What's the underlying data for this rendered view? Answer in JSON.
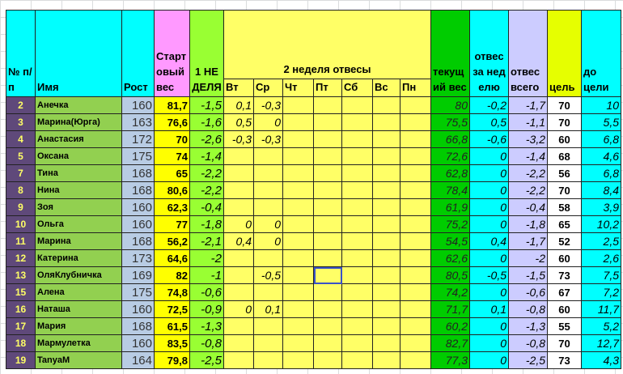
{
  "headers": {
    "num": "№ п/п",
    "name": "Имя",
    "rost": "Рост",
    "start": "Стартовый вес",
    "week1": "1 НЕДЕЛЯ",
    "week2": "2 неделя отвесы",
    "days": [
      "Вт",
      "Ср",
      "Чт",
      "Пт",
      "Сб",
      "Вс",
      "Пн"
    ],
    "current": "текущий вес",
    "week_loss": "отвес за неделю",
    "total_loss": "отвес всего",
    "goal": "цель",
    "to_goal": "до цели"
  },
  "colors": {
    "header_cyan": "#00ffff",
    "start_pink": "#ff99ff",
    "week_green": "#99ff33",
    "days_yellow": "#ffff66",
    "current_green": "#00cc00",
    "total_lavender": "#ccccff",
    "goal_yellow": "#e6ff00",
    "num_purple": "#5f497a"
  },
  "selected_cell": {
    "row_num": "13",
    "column": "Пт"
  },
  "rows": [
    {
      "num": "2",
      "name": "Анечка",
      "rost": "160",
      "start": "81,7",
      "w1": "-1,5",
      "days": [
        "0,1",
        "-0,3",
        "",
        "",
        "",
        "",
        ""
      ],
      "cur": "80",
      "wk": "-0,2",
      "tot": "-1,7",
      "goal": "70",
      "left": "10"
    },
    {
      "num": "3",
      "name": "Марина(Юрга)",
      "rost": "163",
      "start": "76,6",
      "w1": "-1,6",
      "days": [
        "0,5",
        "0",
        "",
        "",
        "",
        "",
        ""
      ],
      "cur": "75,5",
      "wk": "0,5",
      "tot": "-1,1",
      "goal": "70",
      "left": "5,5"
    },
    {
      "num": "4",
      "name": "Анастасия",
      "rost": "172",
      "start": "70",
      "w1": "-2,6",
      "days": [
        "-0,3",
        "-0,3",
        "",
        "",
        "",
        "",
        ""
      ],
      "cur": "66,8",
      "wk": "-0,6",
      "tot": "-3,2",
      "goal": "60",
      "left": "6,8"
    },
    {
      "num": "5",
      "name": "Оксана",
      "rost": "175",
      "start": "74",
      "w1": "-1,4",
      "days": [
        "",
        "",
        "",
        "",
        "",
        "",
        ""
      ],
      "cur": "72,6",
      "wk": "0",
      "tot": "-1,4",
      "goal": "68",
      "left": "4,6"
    },
    {
      "num": "7",
      "name": "Тина",
      "rost": "168",
      "start": "65",
      "w1": "-2,2",
      "days": [
        "",
        "",
        "",
        "",
        "",
        "",
        ""
      ],
      "cur": "62,8",
      "wk": "0",
      "tot": "-2,2",
      "goal": "56",
      "left": "6,8"
    },
    {
      "num": "8",
      "name": "Нина",
      "rost": "168",
      "start": "80,6",
      "w1": "-2,2",
      "days": [
        "",
        "",
        "",
        "",
        "",
        "",
        ""
      ],
      "cur": "78,4",
      "wk": "0",
      "tot": "-2,2",
      "goal": "70",
      "left": "8,4"
    },
    {
      "num": "9",
      "name": "Зоя",
      "rost": "160",
      "start": "62,3",
      "w1": "-0,4",
      "days": [
        "",
        "",
        "",
        "",
        "",
        "",
        ""
      ],
      "cur": "61,9",
      "wk": "0",
      "tot": "-0,4",
      "goal": "58",
      "left": "3,9"
    },
    {
      "num": "10",
      "name": "Ольга",
      "rost": "160",
      "start": "77",
      "w1": "-1,8",
      "days": [
        "0",
        "0",
        "",
        "",
        "",
        "",
        ""
      ],
      "cur": "75,2",
      "wk": "0",
      "tot": "-1,8",
      "goal": "65",
      "left": "10,2"
    },
    {
      "num": "11",
      "name": "Марина",
      "rost": "168",
      "start": "56,2",
      "w1": "-2,1",
      "days": [
        "0,4",
        "0",
        "",
        "",
        "",
        "",
        ""
      ],
      "cur": "54,5",
      "wk": "0,4",
      "tot": "-1,7",
      "goal": "52",
      "left": "2,5"
    },
    {
      "num": "12",
      "name": "Катерина",
      "rost": "173",
      "start": "64,6",
      "w1": "-2",
      "days": [
        "",
        "",
        "",
        "",
        "",
        "",
        ""
      ],
      "cur": "62,6",
      "wk": "0",
      "tot": "-2",
      "goal": "60",
      "left": "2,6"
    },
    {
      "num": "13",
      "name": "ОляКлубничка",
      "rost": "169",
      "start": "82",
      "w1": "-1",
      "days": [
        "",
        "-0,5",
        "",
        "",
        "",
        "",
        ""
      ],
      "cur": "80,5",
      "wk": "-0,5",
      "tot": "-1,5",
      "goal": "73",
      "left": "7,5"
    },
    {
      "num": "15",
      "name": "Алена",
      "rost": "175",
      "start": "74,8",
      "w1": "-0,6",
      "days": [
        "",
        "",
        "",
        "",
        "",
        "",
        ""
      ],
      "cur": "74,2",
      "wk": "0",
      "tot": "-0,6",
      "goal": "67",
      "left": "7,2"
    },
    {
      "num": "16",
      "name": "Наташа",
      "rost": "160",
      "start": "72,5",
      "w1": "-0,9",
      "days": [
        "0",
        "0,1",
        "",
        "",
        "",
        "",
        ""
      ],
      "cur": "71,7",
      "wk": "0,1",
      "tot": "-0,8",
      "goal": "60",
      "left": "11,7"
    },
    {
      "num": "17",
      "name": "Мария",
      "rost": "168",
      "start": "61,5",
      "w1": "-1,3",
      "days": [
        "",
        "",
        "",
        "",
        "",
        "",
        ""
      ],
      "cur": "60,2",
      "wk": "0",
      "tot": "-1,3",
      "goal": "55",
      "left": "5,2"
    },
    {
      "num": "18",
      "name": "Мармулетка",
      "rost": "160",
      "start": "83,5",
      "w1": "-0,8",
      "days": [
        "",
        "",
        "",
        "",
        "",
        "",
        ""
      ],
      "cur": "82,7",
      "wk": "0",
      "tot": "-0,8",
      "goal": "70",
      "left": "12,7"
    },
    {
      "num": "19",
      "name": "TanyaM",
      "rost": "164",
      "start": "79,8",
      "w1": "-2,5",
      "days": [
        "",
        "",
        "",
        "",
        "",
        "",
        ""
      ],
      "cur": "77,3",
      "wk": "0",
      "tot": "-2,5",
      "goal": "73",
      "left": "4,3"
    }
  ]
}
